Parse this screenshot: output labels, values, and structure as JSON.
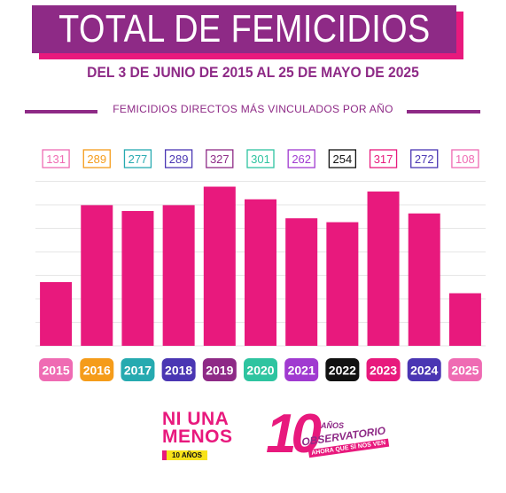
{
  "header": {
    "title": "TOTAL DE FEMICIDIOS",
    "subtitle": "DEL 3 DE JUNIO DE 2015 AL 25 DE MAYO DE 2025",
    "section_title": "FEMICIDIOS DIRECTOS MÁS VINCULADOS POR AÑO"
  },
  "colors": {
    "bar": "#e8197d",
    "title_bg": "#8e2a86",
    "title_shadow": "#e8197d",
    "grid": "#e6e6e6"
  },
  "chart_data": {
    "type": "bar",
    "title": "FEMICIDIOS DIRECTOS MÁS VINCULADOS POR AÑO",
    "categories": [
      "2015",
      "2016",
      "2017",
      "2018",
      "2019",
      "2020",
      "2021",
      "2022",
      "2023",
      "2024",
      "2025"
    ],
    "values": [
      131,
      289,
      277,
      289,
      327,
      301,
      262,
      254,
      317,
      272,
      108
    ],
    "label_colors": [
      "#ef6bb3",
      "#f59c1a",
      "#26aab0",
      "#4a36b3",
      "#8e2a86",
      "#2ec4a0",
      "#a03ad0",
      "#111111",
      "#e8197d",
      "#4a36b3",
      "#ef6bb3"
    ],
    "ylim": [
      0,
      360
    ],
    "grid": true,
    "xlabel": "",
    "ylabel": ""
  },
  "logos": {
    "nua_line1": "NI UNA",
    "nua_line2": "MENOS",
    "nua_tag": "10 AÑOS",
    "obs_number": "10",
    "obs_anos": "AÑOS",
    "obs_main": "OBSERVATORIO",
    "obs_tag": "AHORA QUE SÍ NOS VEN"
  }
}
